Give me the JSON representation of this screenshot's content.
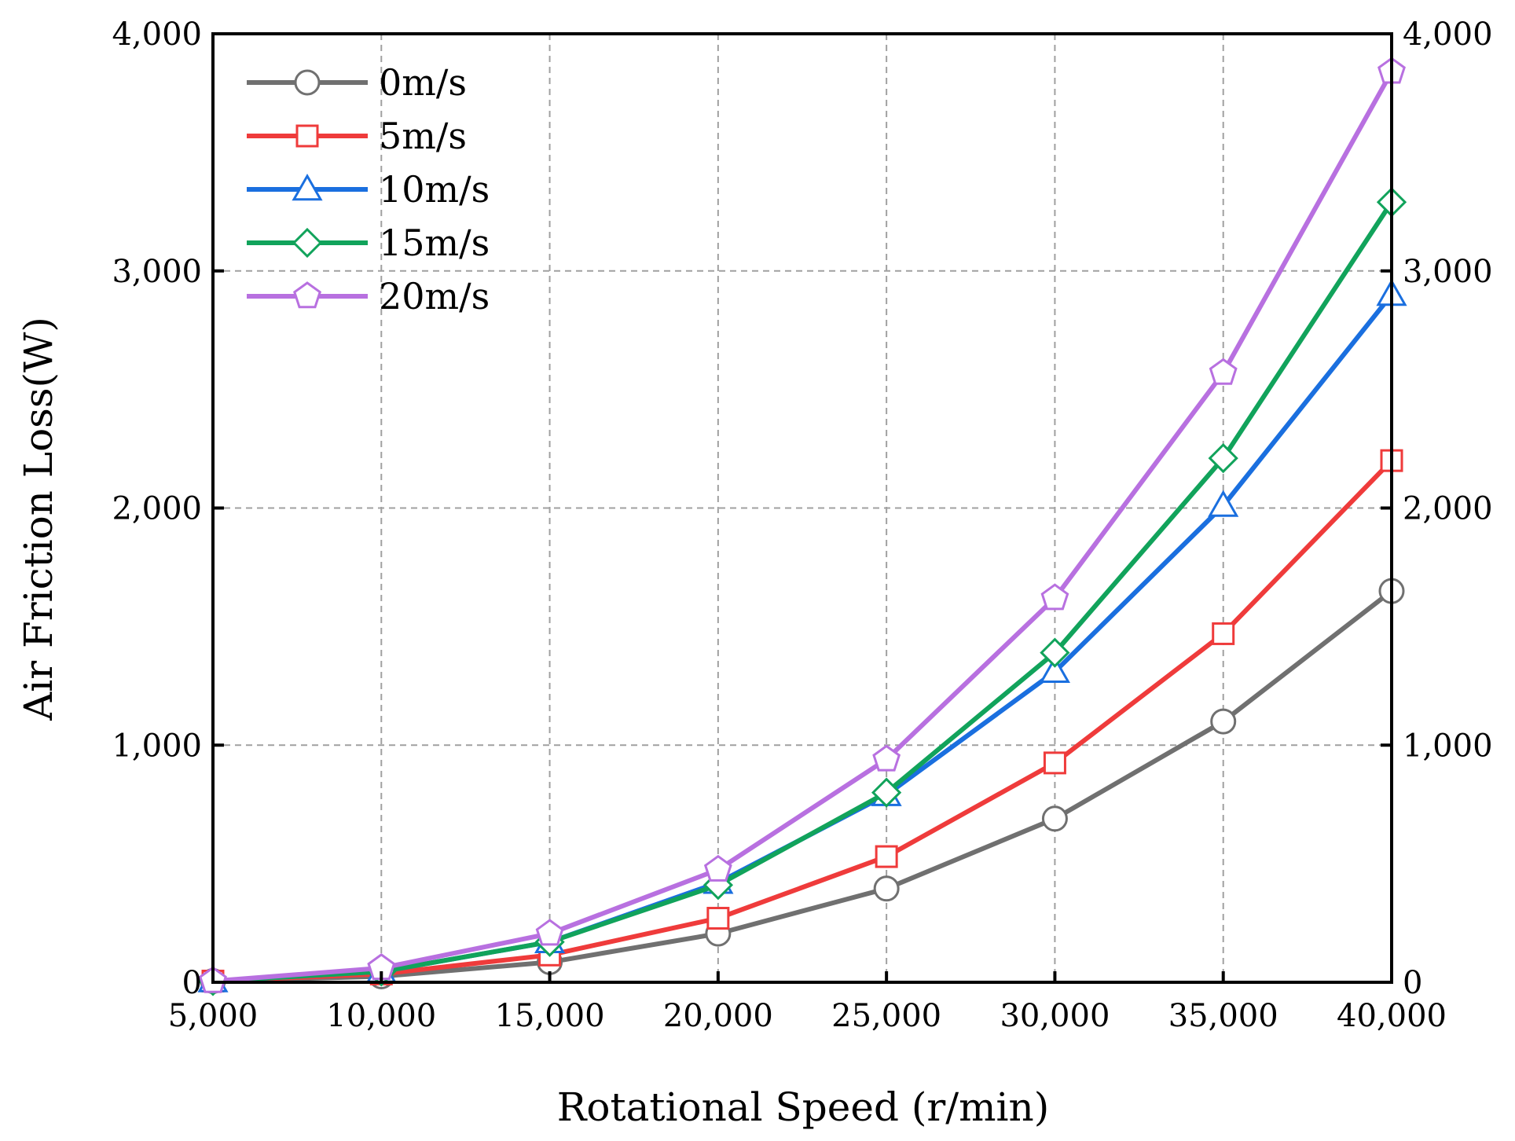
{
  "chart_data": {
    "type": "line",
    "title": "",
    "xlabel": "Rotational Speed (r/min)",
    "ylabel": "Air Friction Loss(W)",
    "x": [
      5000,
      10000,
      15000,
      20000,
      25000,
      30000,
      35000,
      40000
    ],
    "xlim": [
      5000,
      40000
    ],
    "ylim": [
      0,
      4000
    ],
    "x_ticks": [
      5000,
      10000,
      15000,
      20000,
      25000,
      30000,
      35000,
      40000
    ],
    "x_tick_labels": [
      "5,000",
      "10,000",
      "15,000",
      "20,000",
      "25,000",
      "30,000",
      "35,000",
      "40,000"
    ],
    "y_ticks": [
      0,
      1000,
      2000,
      3000,
      4000
    ],
    "y_tick_labels": [
      "0",
      "1,000",
      "2,000",
      "3,000",
      "4,000"
    ],
    "right_axis_mirror": true,
    "grid": true,
    "legend_position": "top-left",
    "series": [
      {
        "name": "0m/s",
        "color": "#707070",
        "marker": "circle",
        "values": [
          5,
          25,
          85,
          205,
          395,
          690,
          1100,
          1650
        ]
      },
      {
        "name": "5m/s",
        "color": "#ef3b3b",
        "marker": "square",
        "values": [
          5,
          35,
          115,
          270,
          530,
          925,
          1470,
          2200
        ]
      },
      {
        "name": "10m/s",
        "color": "#1a6fdf",
        "marker": "triangle",
        "values": [
          5,
          45,
          170,
          420,
          790,
          1310,
          2010,
          2900
        ]
      },
      {
        "name": "15m/s",
        "color": "#11a35b",
        "marker": "diamond",
        "values": [
          5,
          45,
          170,
          410,
          800,
          1390,
          2210,
          3290
        ]
      },
      {
        "name": "20m/s",
        "color": "#b870e0",
        "marker": "pentagon",
        "values": [
          5,
          60,
          205,
          475,
          940,
          1620,
          2570,
          3840
        ]
      }
    ]
  }
}
